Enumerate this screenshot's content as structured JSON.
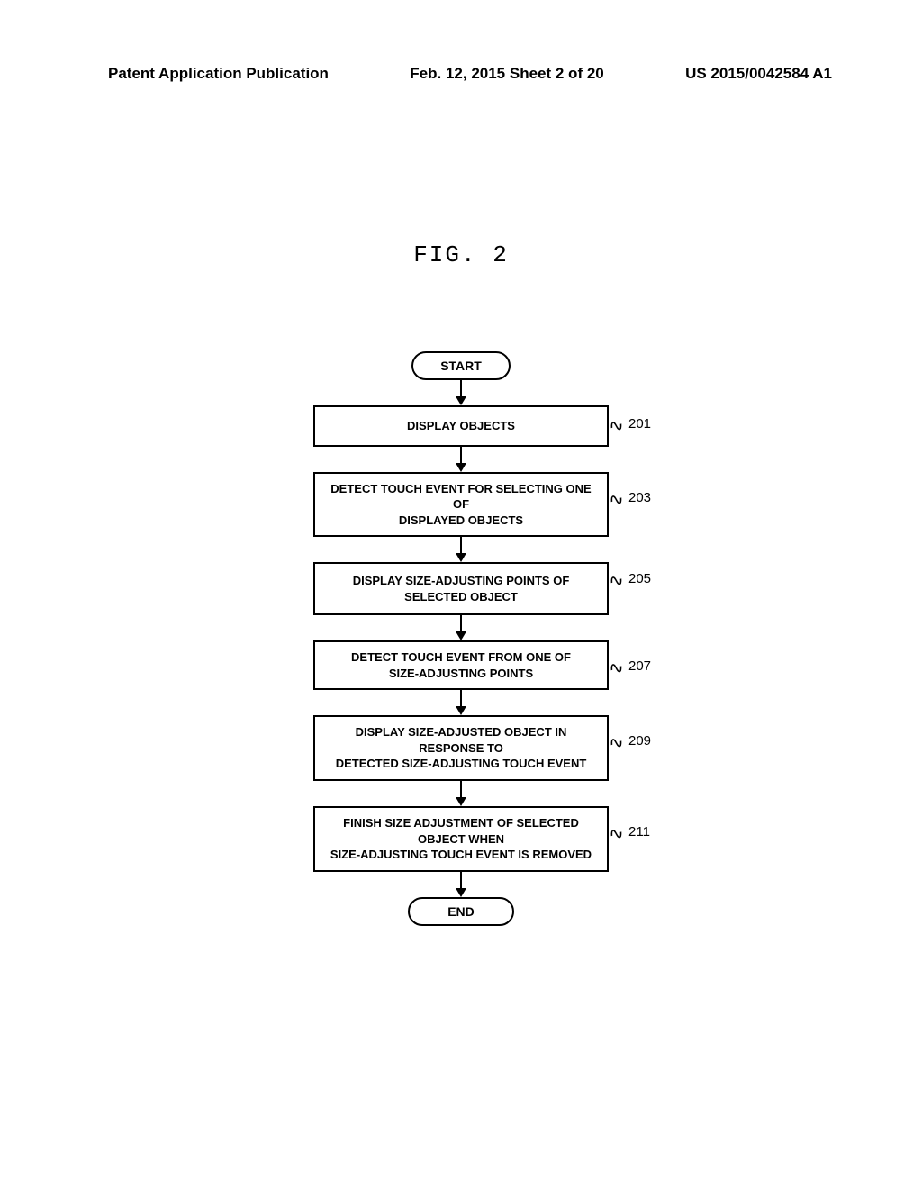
{
  "header": {
    "left": "Patent Application Publication",
    "center": "Feb. 12, 2015  Sheet 2 of 20",
    "right": "US 2015/0042584 A1"
  },
  "figure_title": "FIG. 2",
  "flowchart": {
    "type": "flowchart",
    "arrow_line_height": 18,
    "terminal_start": "START",
    "terminal_end": "END",
    "process_width": 328,
    "steps": [
      {
        "text": "DISPLAY OBJECTS",
        "ref": "201",
        "lines": 1
      },
      {
        "text": "DETECT TOUCH EVENT FOR SELECTING ONE OF\nDISPLAYED OBJECTS",
        "ref": "203",
        "lines": 2
      },
      {
        "text": "DISPLAY SIZE-ADJUSTING POINTS OF SELECTED OBJECT",
        "ref": "205",
        "lines": 1
      },
      {
        "text": "DETECT TOUCH EVENT FROM ONE OF\nSIZE-ADJUSTING POINTS",
        "ref": "207",
        "lines": 2
      },
      {
        "text": "DISPLAY SIZE-ADJUSTED OBJECT IN RESPONSE TO\nDETECTED SIZE-ADJUSTING TOUCH EVENT",
        "ref": "209",
        "lines": 2
      },
      {
        "text": "FINISH SIZE ADJUSTMENT OF SELECTED OBJECT WHEN\nSIZE-ADJUSTING TOUCH EVENT IS REMOVED",
        "ref": "211",
        "lines": 2
      }
    ],
    "colors": {
      "line": "#000000",
      "text": "#000000",
      "background": "#ffffff"
    }
  }
}
